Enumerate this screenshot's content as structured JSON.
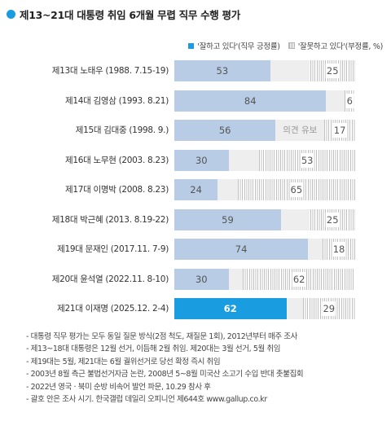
{
  "title": "제13~21대 대통령 취임 6개월 무렵 직무 수행 평가",
  "legend": {
    "positive": "'잘하고 있다'(직무 긍정률)",
    "negative": "'잘못하고 있다'(부정률, %)"
  },
  "colors": {
    "positive": "#b8cce6",
    "current": "#1a9de0",
    "undecided": "#eeeeee",
    "negative_pattern": "#c0c0c0"
  },
  "chart_data": {
    "type": "bar",
    "orientation": "horizontal",
    "stacked": true,
    "categories": [
      "제13대 노태우 (1988. 7.15-19)",
      "제14대 김영삼 (1993. 8.21)",
      "제15대 김대중 (1998. 9.)",
      "제16대 노무현 (2003. 8.23)",
      "제17대 이명박 (2008. 8.23)",
      "제18대 박근혜 (2013. 8.19-22)",
      "제19대 문재인 (2017.11. 7-9)",
      "제20대 윤석열 (2022.11. 8-10)",
      "제21대 이재명 (2025.12. 2-4)"
    ],
    "series": [
      {
        "name": "'잘하고 있다'(직무 긍정률)",
        "values": [
          53,
          84,
          56,
          30,
          24,
          59,
          74,
          30,
          62
        ]
      },
      {
        "name": "'잘못하고 있다'(부정률, %)",
        "values": [
          25,
          6,
          17,
          53,
          65,
          25,
          18,
          62,
          29
        ]
      }
    ],
    "annotations": [
      {
        "category": "제15대 김대중 (1998. 9.)",
        "text": "의견 유보"
      }
    ],
    "xlim": [
      0,
      100
    ],
    "highlight": "제21대 이재명 (2025.12. 2-4)",
    "legend_position": "top-right"
  },
  "notes": [
    "- 대통령 직무 평가는 모두 동일 질문 방식(2점 척도, 재질문 1회), 2012년부터 매주 조사",
    "- 제13~18대 대통령은 12월 선거, 이듬해 2월 취임. 제20대는 3월 선거, 5월 취임",
    "- 제19대는 5월, 제21대는 6월 궐위선거로 당선 확정 즉시 취임",
    "- 2003년 8월 측근 불법선거자금 논란, 2008년 5~8월 미국산 소고기 수입 반대 촛불집회",
    "- 2022년 영국 · 북미 순방 비속어 발언 파문, 10.29 참사 후",
    "- 괄호 안은 조사 시기. 한국갤럽 데일리 오피니언 제644호 www.gallup.co.kr"
  ]
}
